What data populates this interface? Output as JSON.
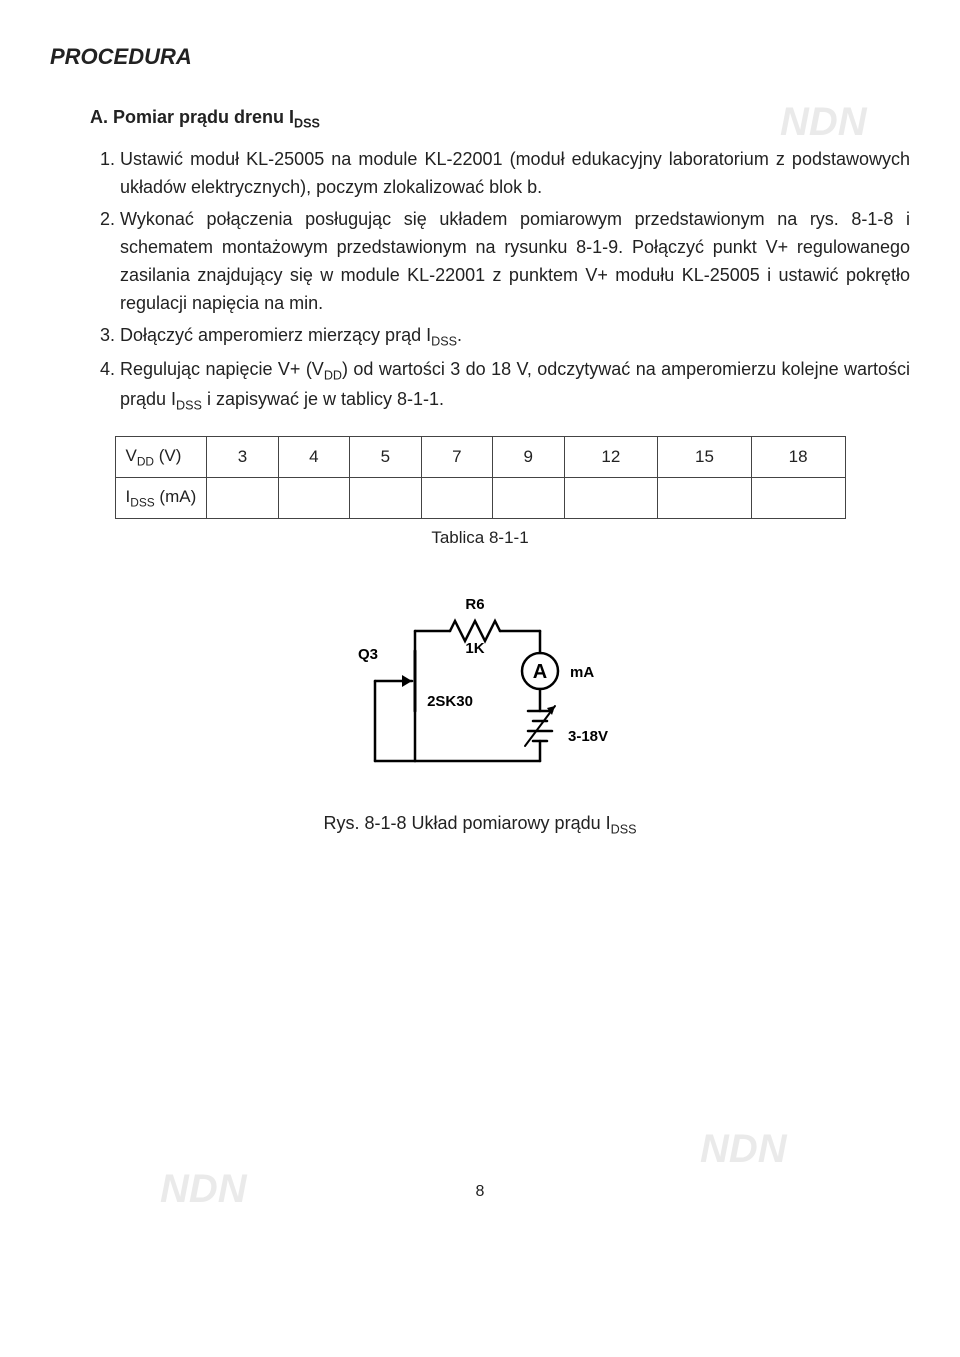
{
  "heading": "PROCEDURA",
  "section": {
    "label": "A. Pomiar prądu drenu I",
    "label_sub": "DSS"
  },
  "steps": [
    {
      "n": "1.",
      "html": "Ustawić moduł KL-25005 na module KL-22001 (moduł edukacyjny laboratorium z podstawowych układów elektrycznych), poczym zlokalizować blok b."
    },
    {
      "n": "2.",
      "html": "Wykonać połączenia posługując się układem pomiarowym przedstawionym na rys. 8-1-8 i schematem montażowym przedstawionym na rysunku 8-1-9. Połączyć punkt V+ regulowanego zasilania znajdujący się w module KL-22001 z punktem V+ modułu KL-25005 i ustawić pokrętło regulacji napięcia na min."
    },
    {
      "n": "3.",
      "html": "Dołączyć amperomierz mierzący prąd I<sub>DSS</sub>."
    },
    {
      "n": "4.",
      "html": "Regulując napięcie V+ (V<sub>DD</sub>) od wartości 3 do 18 V, odczytywać na amperomierzu kolejne wartości prądu I<sub>DSS</sub> i zapisywać je w tablicy 8-1-1."
    }
  ],
  "table": {
    "row1_label": "V<sub>DD</sub> (V)",
    "row1_values": [
      "3",
      "4",
      "5",
      "7",
      "9",
      "12",
      "15",
      "18"
    ],
    "row2_label": "I<sub>DSS</sub> (mA)",
    "row2_values": [
      "",
      "",
      "",
      "",
      "",
      "",
      "",
      ""
    ],
    "caption": "Tablica 8-1-1"
  },
  "schematic": {
    "R6": "R6",
    "R6_val": "1K",
    "Q3": "Q3",
    "Q3_part": "2SK30",
    "A": "A",
    "mA": "mA",
    "V": "3-18V"
  },
  "fig_caption_pre": "Rys. 8-1-8 Układ pomiarowy prądu I",
  "fig_caption_sub": "DSS",
  "page_number": "8"
}
